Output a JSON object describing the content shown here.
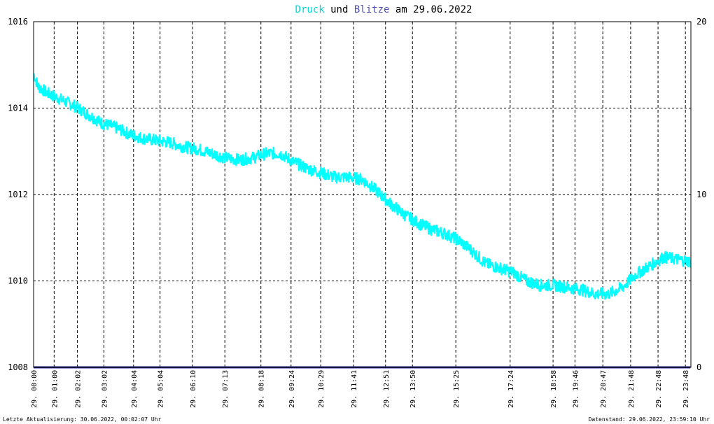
{
  "colors": {
    "druck": "#00ffff",
    "blitze": "#2b2b8c",
    "axis": "#000000",
    "grid": "#000000",
    "background": "#ffffff"
  },
  "footer": {
    "left": "Letzte Aktualisierung: 30.06.2022, 00:02:07 Uhr",
    "right": "Datenstand: 29.06.2022, 23:59:10 Uhr"
  },
  "chart_data": {
    "type": "line",
    "title": {
      "part1": "Druck",
      "part2": " und ",
      "part3": "Blitze",
      "part4": " am 29.06.2022"
    },
    "y_left": {
      "ticks": [
        1008,
        1010,
        1012,
        1014,
        1016
      ],
      "range": [
        1008,
        1016
      ]
    },
    "y_right": {
      "ticks": [
        0,
        10,
        20
      ],
      "range": [
        0,
        20
      ]
    },
    "x_range_hours": [
      0,
      24
    ],
    "grid": true,
    "x_ticks": [
      {
        "time": "00:00",
        "label": "29. 00:00"
      },
      {
        "time": "00:45",
        "label": "29. 01:00"
      },
      {
        "time": "01:36",
        "label": "29. 02:02"
      },
      {
        "time": "02:34",
        "label": "29. 03:02"
      },
      {
        "time": "03:39",
        "label": "29. 04:04"
      },
      {
        "time": "04:37",
        "label": "29. 05:04"
      },
      {
        "time": "05:48",
        "label": "29. 06:10"
      },
      {
        "time": "06:59",
        "label": "29. 07:13"
      },
      {
        "time": "08:18",
        "label": "29. 08:18"
      },
      {
        "time": "09:24",
        "label": "29. 09:24"
      },
      {
        "time": "10:29",
        "label": "29. 10:29"
      },
      {
        "time": "11:41",
        "label": "29. 11:41"
      },
      {
        "time": "12:51",
        "label": "29. 12:51"
      },
      {
        "time": "13:50",
        "label": "29. 13:50"
      },
      {
        "time": "15:25",
        "label": "29. 15:25"
      },
      {
        "time": "17:24",
        "label": "29. 17:24"
      },
      {
        "time": "18:58",
        "label": "29. 18:58"
      },
      {
        "time": "19:46",
        "label": "29. 19:46"
      },
      {
        "time": "20:47",
        "label": "29. 20:47"
      },
      {
        "time": "21:48",
        "label": "29. 21:48"
      },
      {
        "time": "22:48",
        "label": "29. 22:48"
      },
      {
        "time": "23:48",
        "label": "29. 23:48"
      }
    ],
    "series": [
      {
        "name": "Druck",
        "axis": "left",
        "color": "#00ffff",
        "points": [
          [
            "00:00",
            1014.8
          ],
          [
            "00:10",
            1014.5
          ],
          [
            "00:30",
            1014.35
          ],
          [
            "01:00",
            1014.2
          ],
          [
            "01:30",
            1014.05
          ],
          [
            "02:00",
            1013.85
          ],
          [
            "02:30",
            1013.65
          ],
          [
            "03:00",
            1013.55
          ],
          [
            "03:30",
            1013.4
          ],
          [
            "04:00",
            1013.3
          ],
          [
            "04:30",
            1013.25
          ],
          [
            "05:00",
            1013.2
          ],
          [
            "05:30",
            1013.1
          ],
          [
            "06:00",
            1013.05
          ],
          [
            "06:30",
            1012.95
          ],
          [
            "07:00",
            1012.85
          ],
          [
            "07:30",
            1012.8
          ],
          [
            "08:00",
            1012.85
          ],
          [
            "08:30",
            1012.95
          ],
          [
            "09:00",
            1012.95
          ],
          [
            "09:30",
            1012.75
          ],
          [
            "10:00",
            1012.6
          ],
          [
            "10:30",
            1012.5
          ],
          [
            "11:00",
            1012.4
          ],
          [
            "11:30",
            1012.4
          ],
          [
            "12:00",
            1012.35
          ],
          [
            "12:30",
            1012.1
          ],
          [
            "13:00",
            1011.8
          ],
          [
            "13:30",
            1011.55
          ],
          [
            "14:00",
            1011.35
          ],
          [
            "14:30",
            1011.2
          ],
          [
            "15:00",
            1011.1
          ],
          [
            "15:30",
            1010.95
          ],
          [
            "16:00",
            1010.7
          ],
          [
            "16:30",
            1010.4
          ],
          [
            "17:00",
            1010.3
          ],
          [
            "17:30",
            1010.2
          ],
          [
            "18:00",
            1010.0
          ],
          [
            "18:30",
            1009.9
          ],
          [
            "19:00",
            1009.9
          ],
          [
            "19:30",
            1009.85
          ],
          [
            "20:00",
            1009.8
          ],
          [
            "20:30",
            1009.7
          ],
          [
            "21:00",
            1009.7
          ],
          [
            "21:30",
            1009.85
          ],
          [
            "22:00",
            1010.15
          ],
          [
            "22:30",
            1010.35
          ],
          [
            "23:00",
            1010.55
          ],
          [
            "23:30",
            1010.5
          ],
          [
            "23:59",
            1010.45
          ]
        ]
      },
      {
        "name": "Blitze",
        "axis": "right",
        "color": "#2b2b8c",
        "points": [
          [
            "00:00",
            0
          ],
          [
            "23:59",
            0
          ]
        ]
      }
    ]
  }
}
